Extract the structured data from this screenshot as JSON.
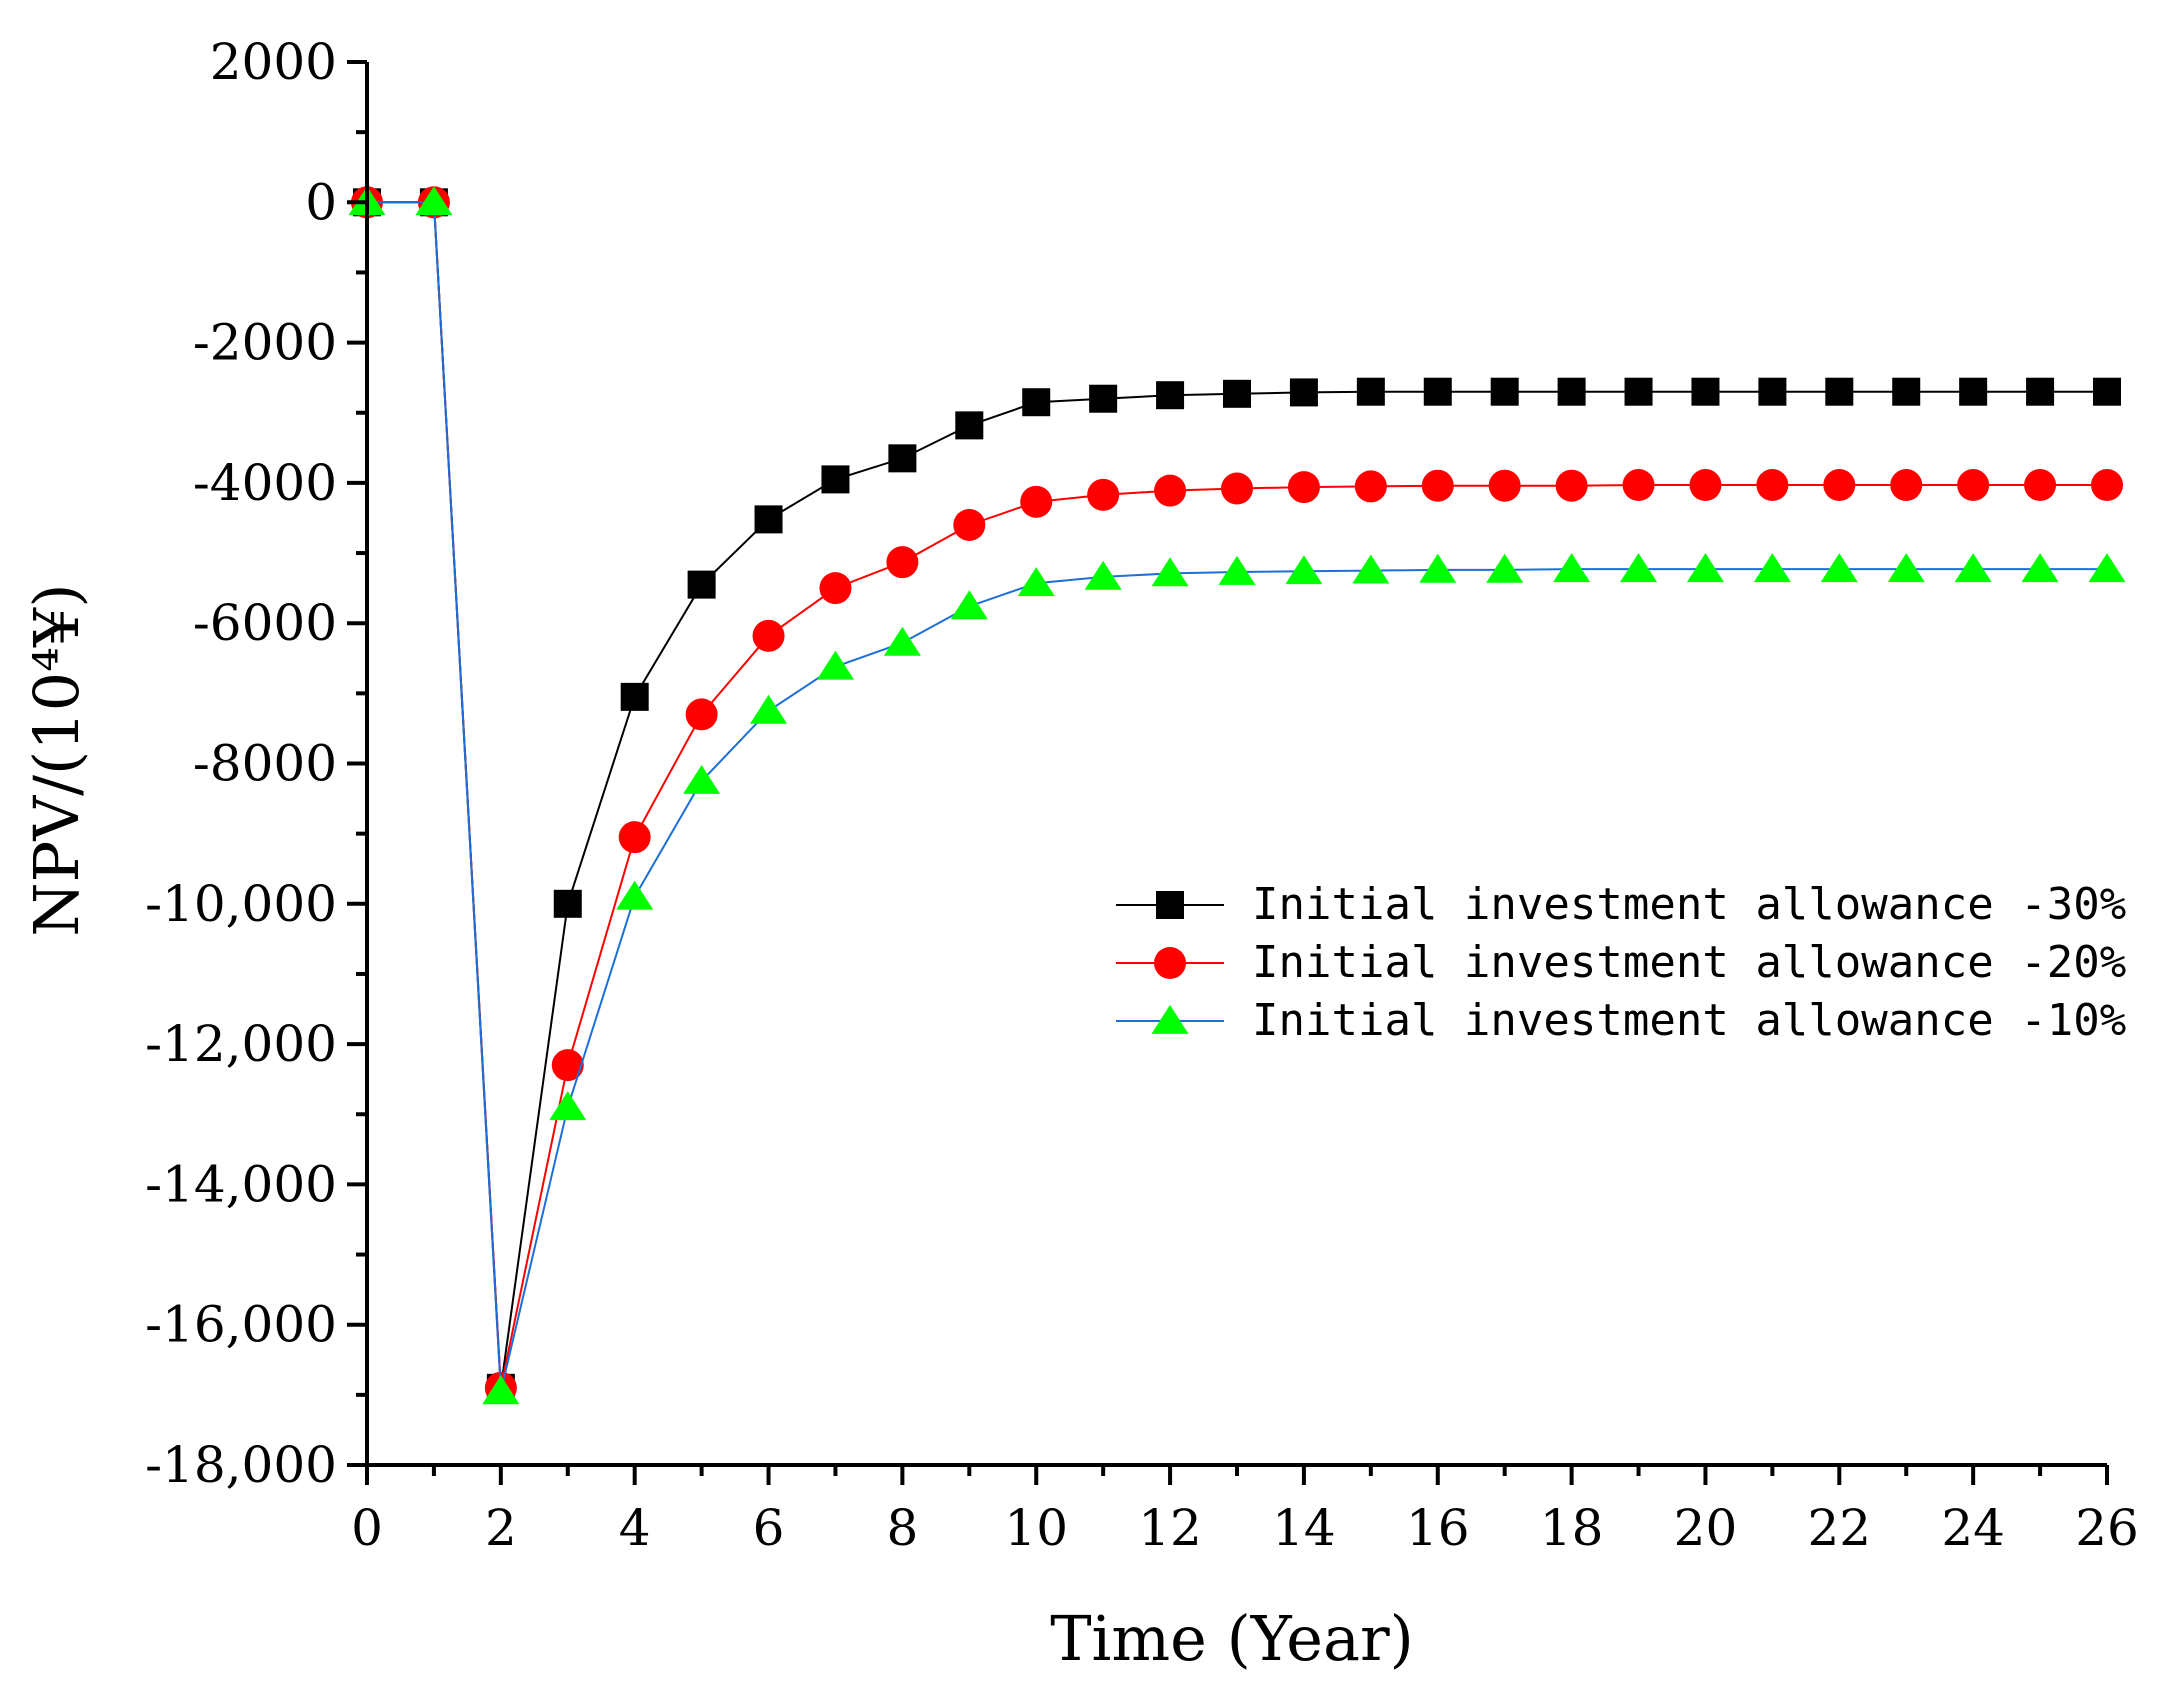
{
  "chart_data": {
    "type": "line",
    "title": "",
    "xlabel": "Time (Year)",
    "ylabel": "NPV/(10⁴¥)",
    "xlim": [
      0,
      26
    ],
    "ylim": [
      -18000,
      2000
    ],
    "x_ticks": [
      0,
      2,
      4,
      6,
      8,
      10,
      12,
      14,
      16,
      18,
      20,
      22,
      24,
      26
    ],
    "x_tick_labels": [
      "0",
      "2",
      "4",
      "6",
      "8",
      "10",
      "12",
      "14",
      "16",
      "18",
      "20",
      "22",
      "24",
      "26"
    ],
    "y_ticks": [
      2000,
      0,
      -2000,
      -4000,
      -6000,
      -8000,
      -10000,
      -12000,
      -14000,
      -16000,
      -18000
    ],
    "y_tick_labels": [
      "2000",
      "0",
      "-2000",
      "-4000",
      "-6000",
      "-8000",
      "-10,000",
      "-12,000",
      "-14,000",
      "-16,000",
      "-18,000"
    ],
    "grid": false,
    "legend_position": "right-middle",
    "x": [
      0,
      1,
      2,
      3,
      4,
      5,
      6,
      7,
      8,
      9,
      10,
      11,
      12,
      13,
      14,
      15,
      16,
      17,
      18,
      19,
      20,
      21,
      22,
      23,
      24,
      25,
      26
    ],
    "series": [
      {
        "name": "Initial investment allowance -30%",
        "marker": "square",
        "marker_color": "#000000",
        "line_color": "#000000",
        "values": [
          0,
          0,
          -16900,
          -10000,
          -7050,
          -5450,
          -4520,
          -3950,
          -3650,
          -3180,
          -2850,
          -2800,
          -2750,
          -2730,
          -2710,
          -2700,
          -2700,
          -2700,
          -2700,
          -2700,
          -2700,
          -2700,
          -2700,
          -2700,
          -2700,
          -2700,
          -2700
        ]
      },
      {
        "name": "Initial investment allowance -20%",
        "marker": "circle",
        "marker_color": "#ff0000",
        "line_color": "#ff0000",
        "values": [
          0,
          0,
          -16900,
          -12300,
          -9050,
          -7300,
          -6180,
          -5500,
          -5130,
          -4600,
          -4270,
          -4170,
          -4110,
          -4080,
          -4060,
          -4050,
          -4040,
          -4040,
          -4040,
          -4030,
          -4030,
          -4030,
          -4030,
          -4030,
          -4030,
          -4030,
          -4030
        ]
      },
      {
        "name": "Initial investment allowance -10%",
        "marker": "triangle",
        "marker_color": "#00ff00",
        "line_color": "#1c6fd8",
        "values": [
          0,
          0,
          -16950,
          -12900,
          -9900,
          -8250,
          -7250,
          -6620,
          -6280,
          -5760,
          -5430,
          -5340,
          -5290,
          -5270,
          -5260,
          -5250,
          -5240,
          -5240,
          -5230,
          -5230,
          -5230,
          -5230,
          -5230,
          -5230,
          -5230,
          -5230,
          -5230
        ]
      }
    ]
  }
}
